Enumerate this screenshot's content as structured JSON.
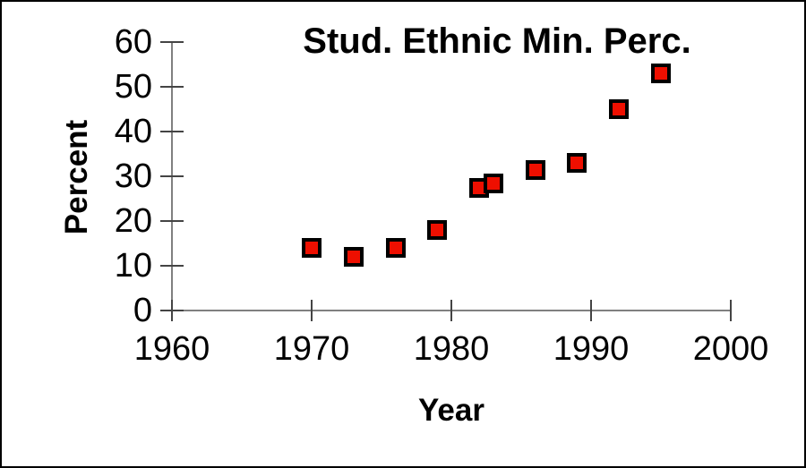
{
  "chart_data": {
    "type": "scatter",
    "title": "Stud. Ethnic Min. Perc.",
    "xlabel": "Year",
    "ylabel": "Percent",
    "xlim": [
      1960,
      2000
    ],
    "ylim": [
      0,
      60
    ],
    "xticks": [
      1960,
      1970,
      1980,
      1990,
      2000
    ],
    "yticks": [
      0,
      10,
      20,
      30,
      40,
      50,
      60
    ],
    "grid": false,
    "legend": false,
    "marker_shape": "square",
    "points": [
      {
        "x": 1970,
        "y": 14
      },
      {
        "x": 1973,
        "y": 12
      },
      {
        "x": 1976,
        "y": 14
      },
      {
        "x": 1979,
        "y": 18
      },
      {
        "x": 1982,
        "y": 27.5
      },
      {
        "x": 1983,
        "y": 28.5
      },
      {
        "x": 1986,
        "y": 31.5
      },
      {
        "x": 1989,
        "y": 33
      },
      {
        "x": 1992,
        "y": 45
      },
      {
        "x": 1995,
        "y": 53
      }
    ]
  },
  "colors": {
    "marker_fill": "#ee0f00",
    "marker_border": "#000000",
    "axis_line": "#808080",
    "tick": "#444444",
    "text": "#000000",
    "background": "#ffffff"
  }
}
